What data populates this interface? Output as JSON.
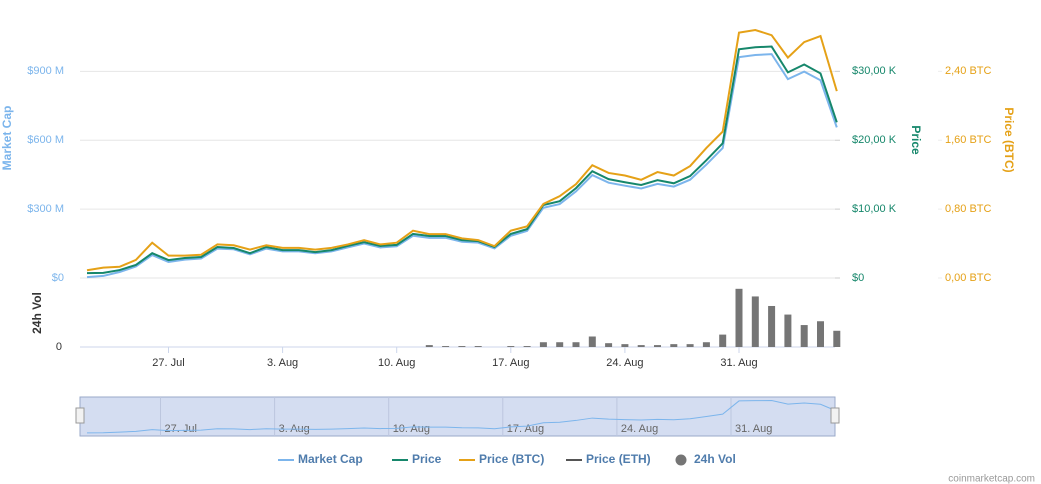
{
  "chart_data": {
    "type": "line",
    "categories": [
      null,
      null,
      null,
      null,
      null,
      "27. Jul",
      null,
      null,
      null,
      null,
      null,
      null,
      "3. Aug",
      null,
      null,
      null,
      null,
      null,
      null,
      "10. Aug",
      null,
      null,
      null,
      null,
      null,
      null,
      "17. Aug",
      null,
      null,
      null,
      null,
      null,
      null,
      "24. Aug",
      null,
      null,
      null,
      null,
      null,
      null,
      "31. Aug",
      null,
      null,
      null,
      null,
      null,
      null
    ],
    "series": [
      {
        "name": "Market Cap",
        "color": "#7cb5ec",
        "axis": "y",
        "values": [
          4,
          9,
          26,
          50,
          100,
          70,
          80,
          85,
          128,
          125,
          103,
          128,
          116,
          116,
          108,
          116,
          133,
          150,
          133,
          138,
          184,
          175,
          175,
          158,
          154,
          129,
          184,
          205,
          306,
          322,
          377,
          448,
          415,
          402,
          390,
          410,
          398,
          428,
          494,
          566,
          962,
          971,
          975,
          866,
          899,
          861,
          656
        ]
      },
      {
        "name": "Price",
        "color": "#16876b",
        "axis": "y2",
        "values": [
          700,
          750,
          1150,
          1900,
          3600,
          2600,
          2900,
          3050,
          4500,
          4350,
          3600,
          4500,
          4050,
          4050,
          3750,
          4050,
          4650,
          5200,
          4650,
          4800,
          6400,
          6100,
          6100,
          5500,
          5350,
          4500,
          6400,
          7100,
          10600,
          11150,
          13050,
          15500,
          14350,
          13900,
          13500,
          14200,
          13750,
          14800,
          17100,
          19550,
          33200,
          33500,
          33600,
          29850,
          31000,
          29700,
          22600
        ]
      },
      {
        "name": "Price (BTC)",
        "color": "#e5a117",
        "axis": "y3",
        "values": [
          0.09,
          0.12,
          0.13,
          0.21,
          0.41,
          0.26,
          0.26,
          0.27,
          0.39,
          0.38,
          0.33,
          0.38,
          0.35,
          0.35,
          0.33,
          0.35,
          0.39,
          0.44,
          0.39,
          0.41,
          0.55,
          0.51,
          0.51,
          0.46,
          0.44,
          0.37,
          0.55,
          0.6,
          0.86,
          0.95,
          1.09,
          1.31,
          1.22,
          1.19,
          1.14,
          1.23,
          1.19,
          1.3,
          1.51,
          1.7,
          2.85,
          2.88,
          2.82,
          2.56,
          2.74,
          2.81,
          2.17
        ]
      },
      {
        "name": "Price (ETH)",
        "color": "#555555",
        "axis": "y"
      },
      {
        "name": "24h Vol",
        "color": "#757575",
        "axis": "vol",
        "values": [
          0,
          0,
          0,
          0,
          0,
          0,
          0,
          0,
          0,
          0,
          0,
          0,
          0,
          0,
          0,
          0,
          0,
          0,
          0,
          0,
          0,
          2,
          1,
          1,
          1,
          0,
          1,
          1,
          5,
          5,
          5,
          11,
          4,
          3,
          2,
          2,
          3,
          3,
          5,
          13,
          61,
          53,
          43,
          34,
          23,
          27,
          17
        ]
      }
    ],
    "y_label": "Market Cap",
    "ylim": [
      0,
      1080
    ],
    "yticks": [
      {
        "value": 0,
        "label": "$0"
      },
      {
        "value": 300,
        "label": "$300 M"
      },
      {
        "value": 600,
        "label": "$600 M"
      },
      {
        "value": 900,
        "label": "$900 M"
      }
    ],
    "y2_label": "Price",
    "y2lim": [
      0,
      36000
    ],
    "y2ticks": [
      {
        "value": 0,
        "label": "$0"
      },
      {
        "value": 10000,
        "label": "$10,00 K"
      },
      {
        "value": 20000,
        "label": "$20,00 K"
      },
      {
        "value": 30000,
        "label": "$30,00 K"
      }
    ],
    "y3_label": "Price (BTC)",
    "y3lim": [
      0,
      2.88
    ],
    "y3ticks": [
      {
        "value": 0,
        "label": "0,00 BTC"
      },
      {
        "value": 0.8,
        "label": "0,80 BTC"
      },
      {
        "value": 1.6,
        "label": "1,60 BTC"
      },
      {
        "value": 2.4,
        "label": "2,40 BTC"
      }
    ],
    "vol_label": "24h Vol",
    "vol_ylim": [
      0,
      65
    ],
    "vol_yticks": [
      0
    ],
    "grid": true,
    "credit": "coinmarketcap.com"
  }
}
